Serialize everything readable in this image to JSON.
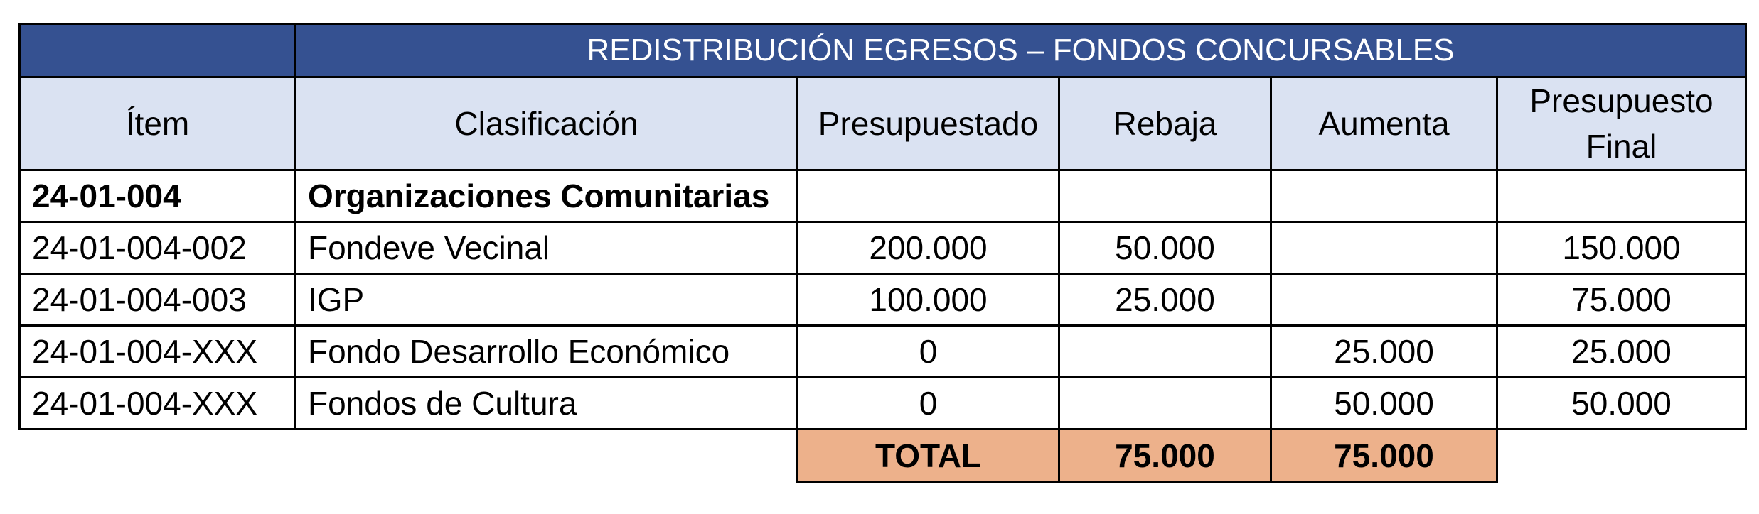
{
  "table": {
    "title": "REDISTRIBUCIÓN EGRESOS – FONDOS CONCURSABLES",
    "headers": {
      "item": "Ítem",
      "clasificacion": "Clasificación",
      "presupuestado": "Presupuestado",
      "rebaja": "Rebaja",
      "aumenta": "Aumenta",
      "presupuesto_final": "Presupuesto Final"
    },
    "rows": [
      {
        "item": "24-01-004",
        "clasificacion": "Organizaciones Comunitarias",
        "presupuestado": "",
        "rebaja": "",
        "aumenta": "",
        "final": ""
      },
      {
        "item": "24-01-004-002",
        "clasificacion": "Fondeve Vecinal",
        "presupuestado": "200.000",
        "rebaja": "50.000",
        "aumenta": "",
        "final": "150.000"
      },
      {
        "item": "24-01-004-003",
        "clasificacion": "IGP",
        "presupuestado": "100.000",
        "rebaja": "25.000",
        "aumenta": "",
        "final": "75.000"
      },
      {
        "item": "24-01-004-XXX",
        "clasificacion": "Fondo Desarrollo Económico",
        "presupuestado": "0",
        "rebaja": "",
        "aumenta": "25.000",
        "final": "25.000"
      },
      {
        "item": "24-01-004-XXX",
        "clasificacion": "Fondos de Cultura",
        "presupuestado": "0",
        "rebaja": "",
        "aumenta": "50.000",
        "final": "50.000"
      }
    ],
    "total": {
      "label": "TOTAL",
      "rebaja": "75.000",
      "aumenta": "75.000"
    }
  },
  "colors": {
    "title_bg": "#355191",
    "header_bg": "#dae2f2",
    "total_bg": "#edb18b"
  }
}
